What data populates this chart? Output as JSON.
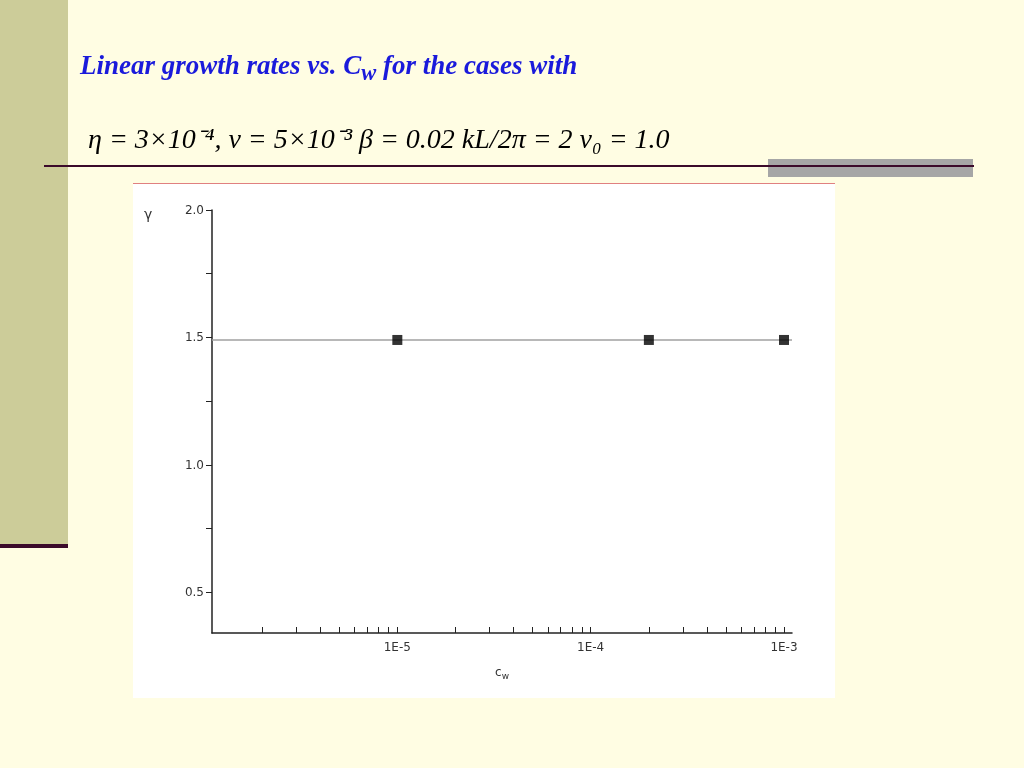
{
  "chart_data": {
    "type": "scatter",
    "title": "Linear growth rates vs. C$_{w}$ for the cases with",
    "subtitle": "η = 3×10⁻⁴, ν = 5×10⁻³  β = 0.02  kL/2π = 2  v₀ = 1.0",
    "xlabel": "c$_{w}$",
    "ylabel": "γ",
    "x": [
      1e-05,
      0.0002,
      0.001
    ],
    "series": [
      {
        "color": "#000000",
        "values": [
          1.49,
          1.49,
          1.49
        ]
      }
    ],
    "marker": "square",
    "log": "x",
    "grid": false,
    "xlim": [
      1.1e-06,
      0.0011
    ],
    "xticks": [
      {
        "value": 2e-06,
        "label": null
      },
      {
        "value": 3e-06,
        "label": null
      },
      {
        "value": 4e-06,
        "label": null
      },
      {
        "value": 5e-06,
        "label": null
      },
      {
        "value": 6e-06,
        "label": null
      },
      {
        "value": 7e-06,
        "label": null
      },
      {
        "value": 8e-06,
        "label": null
      },
      {
        "value": 9e-06,
        "label": null
      },
      {
        "value": 1e-05,
        "label": "1E-5"
      },
      {
        "value": 2e-05,
        "label": null
      },
      {
        "value": 3e-05,
        "label": null
      },
      {
        "value": 4e-05,
        "label": null
      },
      {
        "value": 5e-05,
        "label": null
      },
      {
        "value": 6e-05,
        "label": null
      },
      {
        "value": 7e-05,
        "label": null
      },
      {
        "value": 8e-05,
        "label": null
      },
      {
        "value": 9e-05,
        "label": null
      },
      {
        "value": 0.0001,
        "label": "1E-4"
      },
      {
        "value": 0.0002,
        "label": null
      },
      {
        "value": 0.0003,
        "label": null
      },
      {
        "value": 0.0004,
        "label": null
      },
      {
        "value": 0.0005,
        "label": null
      },
      {
        "value": 0.0006,
        "label": null
      },
      {
        "value": 0.0007,
        "label": null
      },
      {
        "value": 0.0008,
        "label": null
      },
      {
        "value": 0.0009,
        "label": null
      },
      {
        "value": 0.001,
        "label": "1E-3"
      }
    ],
    "ylim": [
      0.34,
      2.0
    ],
    "yticks": [
      {
        "value": 0.5,
        "label": "0.5"
      },
      {
        "value": 0.75,
        "label": null
      },
      {
        "value": 1,
        "label": "1.0"
      },
      {
        "value": 1.25,
        "label": null
      },
      {
        "value": 1.5,
        "label": "1.5"
      },
      {
        "value": 1.75,
        "label": null
      },
      {
        "value": 2,
        "label": "2.0"
      }
    ],
    "ref_lines": [
      {
        "axis": "y",
        "value": 1.49,
        "color": "#a0a0a0",
        "line_style": "solid"
      }
    ]
  }
}
